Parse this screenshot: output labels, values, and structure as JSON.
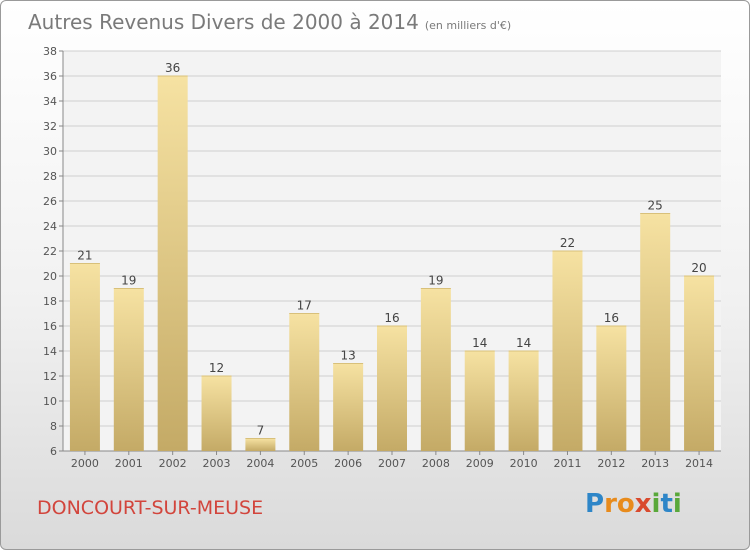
{
  "header": {
    "title": "Autres Revenus Divers de 2000 à 2014",
    "unit": "(en milliers d'€)"
  },
  "footer": {
    "town": "DONCOURT-SUR-MEUSE",
    "brand": "Proxiti",
    "brand_letters": [
      "P",
      "r",
      "o",
      "x",
      "i",
      "t",
      "i"
    ]
  },
  "colors": {
    "bar_top": "#f6e2a2",
    "bar_bottom": "#c4aa66",
    "grid": "#cfcfcf",
    "axis_text": "#555555",
    "title": "#7a7a7a",
    "town": "#d2453c"
  },
  "chart_data": {
    "type": "bar",
    "categories": [
      "2000",
      "2001",
      "2002",
      "2003",
      "2004",
      "2005",
      "2006",
      "2007",
      "2008",
      "2009",
      "2010",
      "2011",
      "2012",
      "2013",
      "2014"
    ],
    "values": [
      21,
      19,
      36,
      12,
      7,
      17,
      13,
      16,
      19,
      14,
      14,
      22,
      16,
      25,
      20
    ],
    "ylim": [
      6,
      38
    ],
    "yticks": [
      6,
      8,
      10,
      12,
      14,
      16,
      18,
      20,
      22,
      24,
      26,
      28,
      30,
      32,
      34,
      36,
      38
    ],
    "grid": true,
    "xlabel": "",
    "ylabel": ""
  }
}
